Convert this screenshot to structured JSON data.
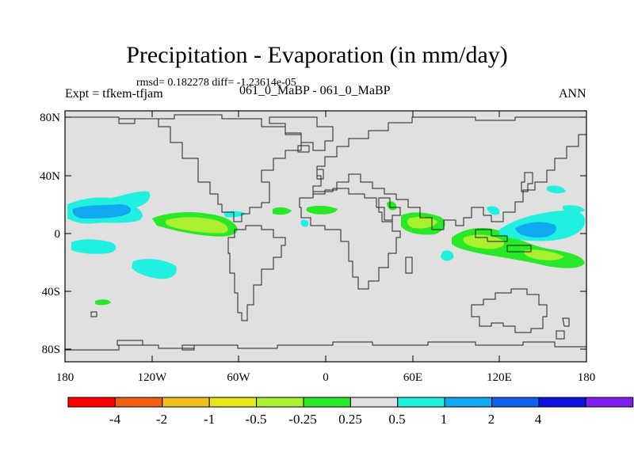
{
  "title": "Precipitation - Evaporation (in mm/day)",
  "stats": "rmsd= 0.182278 diff= -1.23614e-05",
  "left_label": "Expt = tfkem-tfjam",
  "center_label": "061_0_MaBP - 061_0_MaBP",
  "right_label": "ANN",
  "y_ticks": [
    "80N",
    "40N",
    "0",
    "40S",
    "80S"
  ],
  "x_ticks": [
    "180",
    "120W",
    "60W",
    "0",
    "60E",
    "120E",
    "180"
  ],
  "colorbar": {
    "colors": [
      "#ff0000",
      "#f06010",
      "#f0c020",
      "#e8e818",
      "#a8f030",
      "#28e828",
      "#e0e0e0",
      "#20f0e0",
      "#10a8f0",
      "#1060f0",
      "#1010e0",
      "#8020f0"
    ],
    "labels": [
      "-4",
      "-2",
      "-1",
      "-0.5",
      "-0.25",
      "0.25",
      "0.5",
      "1",
      "2",
      "4"
    ]
  },
  "colors": {
    "background": "#e0e0e0",
    "coastline": "#222222",
    "green": "#28e828",
    "light_green": "#a8f030",
    "cyan": "#20f0e0",
    "sky": "#10a8f0",
    "blue": "#1060f0"
  }
}
